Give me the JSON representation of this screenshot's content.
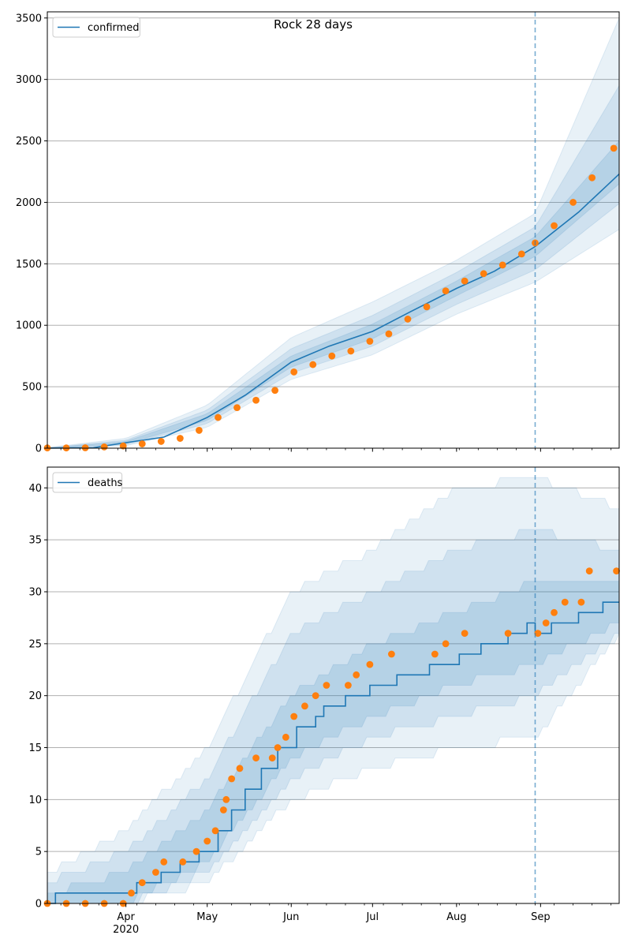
{
  "title": "Rock 28 days",
  "colors": {
    "model": "#1f77b4",
    "observed": "#ff7f0e",
    "grid": "#b0b0b0",
    "band": "#1f77b4"
  },
  "x_axis": {
    "range": [
      "2020-03-03",
      "2020-09-30"
    ],
    "major_ticks": [
      {
        "date": "2020-04-01",
        "label": "Apr",
        "sublabel": "2020"
      },
      {
        "date": "2020-05-01",
        "label": "May",
        "sublabel": ""
      },
      {
        "date": "2020-06-01",
        "label": "Jun",
        "sublabel": ""
      },
      {
        "date": "2020-07-01",
        "label": "Jul",
        "sublabel": ""
      },
      {
        "date": "2020-08-01",
        "label": "Aug",
        "sublabel": ""
      },
      {
        "date": "2020-09-01",
        "label": "Sep",
        "sublabel": ""
      }
    ],
    "forecast_start": "2020-08-30"
  },
  "chart_data": [
    {
      "type": "line",
      "panel": "confirmed",
      "legend": {
        "label": "confirmed",
        "placement": "top-left"
      },
      "ylim": [
        0,
        3550
      ],
      "yticks": [
        0,
        500,
        1000,
        1500,
        2000,
        2500,
        3000,
        3500
      ],
      "grid": "y",
      "model_median": [
        [
          "2020-03-03",
          0
        ],
        [
          "2020-03-20",
          4
        ],
        [
          "2020-04-01",
          45
        ],
        [
          "2020-04-15",
          90
        ],
        [
          "2020-05-01",
          250
        ],
        [
          "2020-05-15",
          430
        ],
        [
          "2020-06-01",
          700
        ],
        [
          "2020-06-15",
          830
        ],
        [
          "2020-07-01",
          950
        ],
        [
          "2020-07-15",
          1110
        ],
        [
          "2020-08-01",
          1300
        ],
        [
          "2020-08-15",
          1440
        ],
        [
          "2020-08-30",
          1640
        ],
        [
          "2020-09-15",
          1920
        ],
        [
          "2020-09-30",
          2230
        ]
      ],
      "bands": [
        {
          "level": "outer",
          "lower": [
            [
              "2020-03-03",
              0
            ],
            [
              "2020-04-01",
              20
            ],
            [
              "2020-05-01",
              170
            ],
            [
              "2020-06-01",
              560
            ],
            [
              "2020-07-01",
              760
            ],
            [
              "2020-08-01",
              1090
            ],
            [
              "2020-08-30",
              1350
            ],
            [
              "2020-09-30",
              1780
            ]
          ],
          "upper": [
            [
              "2020-03-03",
              5
            ],
            [
              "2020-04-01",
              80
            ],
            [
              "2020-05-01",
              350
            ],
            [
              "2020-06-01",
              900
            ],
            [
              "2020-07-01",
              1190
            ],
            [
              "2020-08-01",
              1530
            ],
            [
              "2020-08-30",
              1910
            ],
            [
              "2020-09-30",
              3500
            ]
          ]
        },
        {
          "level": "middle",
          "lower": [
            [
              "2020-03-03",
              0
            ],
            [
              "2020-04-01",
              28
            ],
            [
              "2020-05-01",
              200
            ],
            [
              "2020-06-01",
              610
            ],
            [
              "2020-07-01",
              830
            ],
            [
              "2020-08-01",
              1170
            ],
            [
              "2020-08-30",
              1450
            ],
            [
              "2020-09-30",
              1990
            ]
          ],
          "upper": [
            [
              "2020-03-03",
              3
            ],
            [
              "2020-04-01",
              65
            ],
            [
              "2020-05-01",
              310
            ],
            [
              "2020-06-01",
              810
            ],
            [
              "2020-07-01",
              1080
            ],
            [
              "2020-08-01",
              1430
            ],
            [
              "2020-08-30",
              1800
            ],
            [
              "2020-09-30",
              2950
            ]
          ]
        },
        {
          "level": "inner",
          "lower": [
            [
              "2020-03-03",
              0
            ],
            [
              "2020-04-01",
              36
            ],
            [
              "2020-05-01",
              225
            ],
            [
              "2020-06-01",
              660
            ],
            [
              "2020-07-01",
              890
            ],
            [
              "2020-08-01",
              1240
            ],
            [
              "2020-08-30",
              1560
            ],
            [
              "2020-09-30",
              2150
            ]
          ],
          "upper": [
            [
              "2020-03-03",
              1
            ],
            [
              "2020-04-01",
              55
            ],
            [
              "2020-05-01",
              280
            ],
            [
              "2020-06-01",
              750
            ],
            [
              "2020-07-01",
              1010
            ],
            [
              "2020-08-01",
              1360
            ],
            [
              "2020-08-30",
              1720
            ],
            [
              "2020-09-30",
              2500
            ]
          ]
        }
      ],
      "observed": [
        [
          "2020-03-03",
          2
        ],
        [
          "2020-03-10",
          2
        ],
        [
          "2020-03-17",
          3
        ],
        [
          "2020-03-24",
          10
        ],
        [
          "2020-03-31",
          18
        ],
        [
          "2020-04-07",
          35
        ],
        [
          "2020-04-14",
          55
        ],
        [
          "2020-04-21",
          80
        ],
        [
          "2020-04-28",
          145
        ],
        [
          "2020-05-05",
          250
        ],
        [
          "2020-05-12",
          330
        ],
        [
          "2020-05-19",
          390
        ],
        [
          "2020-05-26",
          470
        ],
        [
          "2020-06-02",
          620
        ],
        [
          "2020-06-09",
          680
        ],
        [
          "2020-06-16",
          750
        ],
        [
          "2020-06-23",
          790
        ],
        [
          "2020-06-30",
          870
        ],
        [
          "2020-07-07",
          930
        ],
        [
          "2020-07-14",
          1050
        ],
        [
          "2020-07-21",
          1150
        ],
        [
          "2020-07-28",
          1280
        ],
        [
          "2020-08-04",
          1360
        ],
        [
          "2020-08-11",
          1420
        ],
        [
          "2020-08-18",
          1490
        ],
        [
          "2020-08-25",
          1580
        ],
        [
          "2020-08-30",
          1670
        ],
        [
          "2020-09-06",
          1810
        ],
        [
          "2020-09-13",
          2000
        ],
        [
          "2020-09-20",
          2200
        ],
        [
          "2020-09-28",
          2440
        ]
      ]
    },
    {
      "type": "line",
      "panel": "deaths",
      "legend": {
        "label": "deaths",
        "placement": "top-left"
      },
      "ylim": [
        0,
        42
      ],
      "yticks": [
        0,
        5,
        10,
        15,
        20,
        25,
        30,
        35,
        40
      ],
      "grid": "y",
      "model_median": [
        [
          "2020-03-03",
          0
        ],
        [
          "2020-03-06",
          1
        ],
        [
          "2020-03-31",
          1
        ],
        [
          "2020-04-05",
          2
        ],
        [
          "2020-04-14",
          3
        ],
        [
          "2020-04-21",
          4
        ],
        [
          "2020-04-28",
          5
        ],
        [
          "2020-05-05",
          7
        ],
        [
          "2020-05-10",
          9
        ],
        [
          "2020-05-15",
          11
        ],
        [
          "2020-05-21",
          13
        ],
        [
          "2020-05-27",
          15
        ],
        [
          "2020-06-03",
          17
        ],
        [
          "2020-06-10",
          18
        ],
        [
          "2020-06-13",
          19
        ],
        [
          "2020-06-21",
          20
        ],
        [
          "2020-06-30",
          21
        ],
        [
          "2020-07-10",
          22
        ],
        [
          "2020-07-22",
          23
        ],
        [
          "2020-08-02",
          24
        ],
        [
          "2020-08-10",
          25
        ],
        [
          "2020-08-20",
          26
        ],
        [
          "2020-08-27",
          27
        ],
        [
          "2020-08-30",
          26
        ],
        [
          "2020-09-05",
          27
        ],
        [
          "2020-09-15",
          28
        ],
        [
          "2020-09-24",
          29
        ],
        [
          "2020-09-30",
          29
        ]
      ],
      "bands": [
        {
          "level": "outer",
          "lower": [
            [
              "2020-03-03",
              0
            ],
            [
              "2020-04-01",
              0
            ],
            [
              "2020-05-01",
              2
            ],
            [
              "2020-06-01",
              10
            ],
            [
              "2020-07-01",
              13
            ],
            [
              "2020-08-01",
              15
            ],
            [
              "2020-08-30",
              16
            ],
            [
              "2020-09-30",
              26
            ]
          ],
          "upper": [
            [
              "2020-03-03",
              3
            ],
            [
              "2020-04-01",
              7
            ],
            [
              "2020-05-01",
              15
            ],
            [
              "2020-06-01",
              30
            ],
            [
              "2020-07-01",
              34
            ],
            [
              "2020-08-01",
              40
            ],
            [
              "2020-08-30",
              41
            ],
            [
              "2020-09-30",
              38
            ]
          ]
        },
        {
          "level": "middle",
          "lower": [
            [
              "2020-03-03",
              0
            ],
            [
              "2020-04-01",
              0
            ],
            [
              "2020-05-01",
              3
            ],
            [
              "2020-06-01",
              12
            ],
            [
              "2020-07-01",
              16
            ],
            [
              "2020-08-01",
              18
            ],
            [
              "2020-08-30",
              20
            ],
            [
              "2020-09-30",
              26
            ]
          ],
          "upper": [
            [
              "2020-03-03",
              2
            ],
            [
              "2020-04-01",
              5
            ],
            [
              "2020-05-01",
              12
            ],
            [
              "2020-06-01",
              26
            ],
            [
              "2020-07-01",
              30
            ],
            [
              "2020-08-01",
              34
            ],
            [
              "2020-08-30",
              36
            ],
            [
              "2020-09-30",
              34
            ]
          ]
        },
        {
          "level": "inner",
          "lower": [
            [
              "2020-03-03",
              0
            ],
            [
              "2020-04-01",
              0
            ],
            [
              "2020-05-01",
              4
            ],
            [
              "2020-06-01",
              14
            ],
            [
              "2020-07-01",
              18
            ],
            [
              "2020-08-01",
              21
            ],
            [
              "2020-08-30",
              23
            ],
            [
              "2020-09-30",
              27
            ]
          ],
          "upper": [
            [
              "2020-03-03",
              1
            ],
            [
              "2020-04-01",
              3
            ],
            [
              "2020-05-01",
              9
            ],
            [
              "2020-06-01",
              20
            ],
            [
              "2020-07-01",
              25
            ],
            [
              "2020-08-01",
              28
            ],
            [
              "2020-08-30",
              31
            ],
            [
              "2020-09-30",
              31
            ]
          ]
        }
      ],
      "observed": [
        [
          "2020-03-03",
          0
        ],
        [
          "2020-03-10",
          0
        ],
        [
          "2020-03-17",
          0
        ],
        [
          "2020-03-24",
          0
        ],
        [
          "2020-03-31",
          0
        ],
        [
          "2020-04-03",
          1
        ],
        [
          "2020-04-07",
          2
        ],
        [
          "2020-04-12",
          3
        ],
        [
          "2020-04-15",
          4
        ],
        [
          "2020-04-22",
          4
        ],
        [
          "2020-04-27",
          5
        ],
        [
          "2020-05-01",
          6
        ],
        [
          "2020-05-04",
          7
        ],
        [
          "2020-05-07",
          9
        ],
        [
          "2020-05-08",
          10
        ],
        [
          "2020-05-10",
          12
        ],
        [
          "2020-05-13",
          13
        ],
        [
          "2020-05-19",
          14
        ],
        [
          "2020-05-25",
          14
        ],
        [
          "2020-05-27",
          15
        ],
        [
          "2020-05-30",
          16
        ],
        [
          "2020-06-02",
          18
        ],
        [
          "2020-06-06",
          19
        ],
        [
          "2020-06-10",
          20
        ],
        [
          "2020-06-14",
          21
        ],
        [
          "2020-06-22",
          21
        ],
        [
          "2020-06-25",
          22
        ],
        [
          "2020-06-30",
          23
        ],
        [
          "2020-07-08",
          24
        ],
        [
          "2020-07-24",
          24
        ],
        [
          "2020-07-28",
          25
        ],
        [
          "2020-08-04",
          26
        ],
        [
          "2020-08-20",
          26
        ],
        [
          "2020-08-31",
          26
        ],
        [
          "2020-09-03",
          27
        ],
        [
          "2020-09-06",
          28
        ],
        [
          "2020-09-10",
          29
        ],
        [
          "2020-09-16",
          29
        ],
        [
          "2020-09-19",
          32
        ],
        [
          "2020-09-29",
          32
        ]
      ]
    }
  ]
}
